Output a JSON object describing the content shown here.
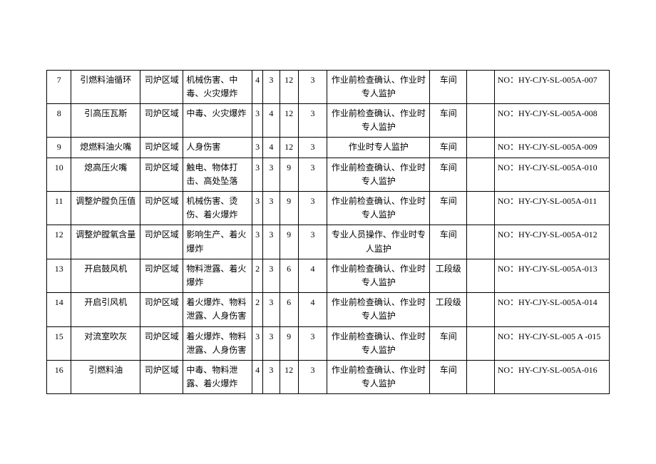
{
  "table": {
    "columns": [
      {
        "key": "no",
        "class": "col-no"
      },
      {
        "key": "op",
        "class": "col-op"
      },
      {
        "key": "area",
        "class": "col-area"
      },
      {
        "key": "haz",
        "class": "col-haz"
      },
      {
        "key": "n1",
        "class": "col-n1"
      },
      {
        "key": "n2",
        "class": "col-n2"
      },
      {
        "key": "n3",
        "class": "col-n3"
      },
      {
        "key": "n4",
        "class": "col-n4"
      },
      {
        "key": "ctrl",
        "class": "col-ctrl"
      },
      {
        "key": "lvl",
        "class": "col-lvl"
      },
      {
        "key": "blank",
        "class": "col-blank"
      },
      {
        "key": "code",
        "class": "col-code"
      }
    ],
    "rows": [
      {
        "no": "7",
        "op": "引燃料油循环",
        "area": "司炉区域",
        "haz": "机械伤害、中毒、火灾爆炸",
        "n1": "4",
        "n2": "3",
        "n3": "12",
        "n4": "3",
        "ctrl": "作业前检查确认、作业时专人监护",
        "lvl": "车间",
        "blank": "",
        "code": "NO：HY-CJY-SL-005A-007"
      },
      {
        "no": "8",
        "op": "引高压瓦斯",
        "area": "司炉区域",
        "haz": "中毒、火灾爆炸",
        "n1": "3",
        "n2": "4",
        "n3": "12",
        "n4": "3",
        "ctrl": "作业前检查确认、作业时专人监护",
        "lvl": "车间",
        "blank": "",
        "code": "NO：HY-CJY-SL-005A-008"
      },
      {
        "no": "9",
        "op": "熄燃料油火嘴",
        "area": "司炉区域",
        "haz": "人身伤害",
        "n1": "3",
        "n2": "4",
        "n3": "12",
        "n4": "3",
        "ctrl": "作业时专人监护",
        "lvl": "车间",
        "blank": "",
        "code": "NO：HY-CJY-SL-005A-009"
      },
      {
        "no": "10",
        "op": "熄高压火嘴",
        "area": "司炉区域",
        "haz": "触电、物体打击、高处坠落",
        "n1": "3",
        "n2": "3",
        "n3": "9",
        "n4": "3",
        "ctrl": "作业前检查确认、作业时专人监护",
        "lvl": "车间",
        "blank": "",
        "code": "NO：HY-CJY-SL-005A-010"
      },
      {
        "no": "11",
        "op": "调整炉膛负压值",
        "area": "司炉区域",
        "haz": "机械伤害、烫伤、着火爆炸",
        "n1": "3",
        "n2": "3",
        "n3": "9",
        "n4": "3",
        "ctrl": "作业前检查确认、作业时专人监护",
        "lvl": "车间",
        "blank": "",
        "code": "NO：HY-CJY-SL-005A-011"
      },
      {
        "no": "12",
        "op": "调整炉膛氧含量",
        "area": "司炉区域",
        "haz": "影响生产、着火爆炸",
        "n1": "3",
        "n2": "3",
        "n3": "9",
        "n4": "3",
        "ctrl": "专业人员操作、作业时专人监护",
        "lvl": "车间",
        "blank": "",
        "code": "NO：HY-CJY-SL-005A-012"
      },
      {
        "no": "13",
        "op": "开启鼓风机",
        "area": "司炉区域",
        "haz": "物料泄露、着火爆炸",
        "n1": "2",
        "n2": "3",
        "n3": "6",
        "n4": "4",
        "ctrl": "作业前检查确认、作业时专人监护",
        "lvl": "工段级",
        "blank": "",
        "code": "NO：HY-CJY-SL-005A-013"
      },
      {
        "no": "14",
        "op": "开启引风机",
        "area": "司炉区域",
        "haz": "着火爆炸、物料泄露、人身伤害",
        "n1": "2",
        "n2": "3",
        "n3": "6",
        "n4": "4",
        "ctrl": "作业前检查确认、作业时专人监护",
        "lvl": "工段级",
        "blank": "",
        "code": "NO：HY-CJY-SL-005A-014"
      },
      {
        "no": "15",
        "op": "对流室吹灰",
        "area": "司炉区域",
        "haz": "着火爆炸、物料泄露、人身伤害",
        "n1": "3",
        "n2": "3",
        "n3": "9",
        "n4": "3",
        "ctrl": "作业前检查确认、作业时专人监护",
        "lvl": "车间",
        "blank": "",
        "code": "NO：HY-CJY-SL-005 A -015"
      },
      {
        "no": "16",
        "op": "引燃料油",
        "area": "司炉区域",
        "haz": "中毒、物料泄露、着火爆炸",
        "n1": "4",
        "n2": "3",
        "n3": "12",
        "n4": "3",
        "ctrl": "作业前检查确认、作业时专人监护",
        "lvl": "车间",
        "blank": "",
        "code": "NO：HY-CJY-SL-005A-016"
      }
    ],
    "style": {
      "border_color": "#000000",
      "background_color": "#ffffff",
      "font_size": 12,
      "font_family": "SimSun"
    }
  }
}
